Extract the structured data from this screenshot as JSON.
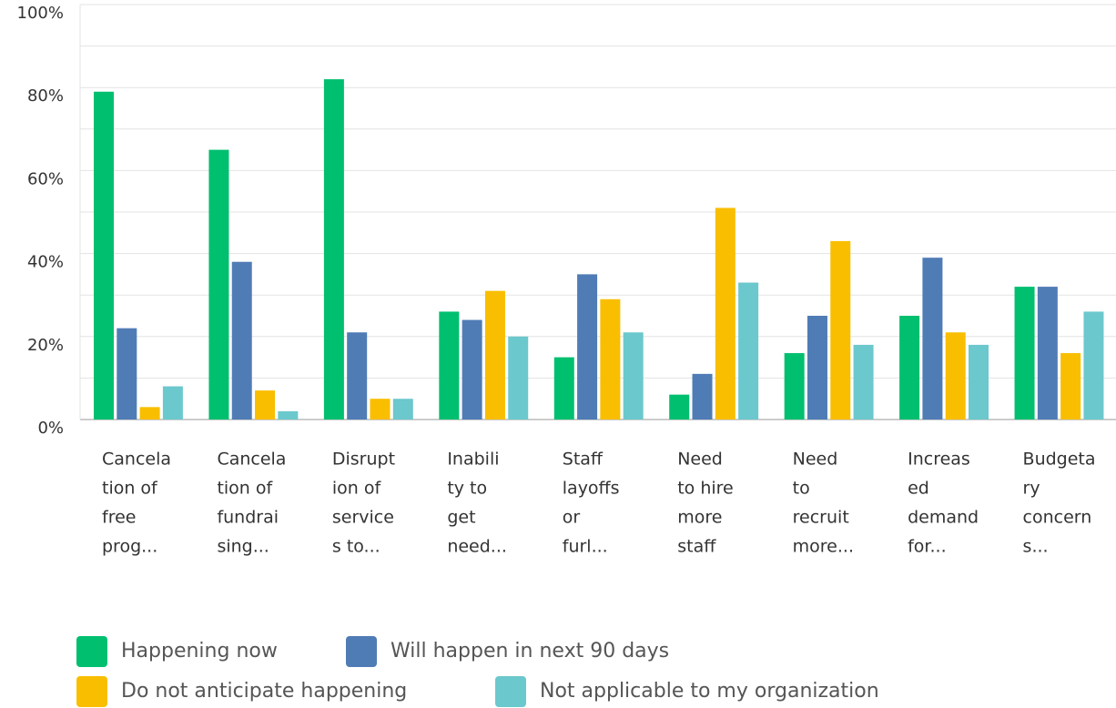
{
  "chart_data": {
    "type": "bar",
    "categories": [
      [
        "Cancela",
        "tion of",
        "free",
        "prog..."
      ],
      [
        "Cancela",
        "tion of",
        "fundrai",
        "sing..."
      ],
      [
        "Disrupt",
        "ion of",
        "service",
        "s to..."
      ],
      [
        "Inabili",
        "ty to",
        "get",
        "need..."
      ],
      [
        "Staff",
        "layoffs",
        "or",
        "furl..."
      ],
      [
        "Need",
        "to hire",
        "more",
        "staff"
      ],
      [
        "Need",
        "to",
        "recruit",
        "more..."
      ],
      [
        "Increas",
        "ed",
        "demand",
        "for..."
      ],
      [
        "Budgeta",
        "ry",
        "concern",
        "s..."
      ]
    ],
    "series": [
      {
        "name": "Happening now",
        "color": "#00bf6f",
        "values": [
          79,
          65,
          82,
          26,
          15,
          6,
          16,
          25,
          32
        ]
      },
      {
        "name": "Will happen in next 90 days",
        "color": "#507cb6",
        "values": [
          22,
          38,
          21,
          24,
          35,
          11,
          25,
          39,
          32
        ]
      },
      {
        "name": "Do not anticipate happening",
        "color": "#f9be00",
        "values": [
          3,
          7,
          5,
          31,
          29,
          51,
          43,
          21,
          16
        ]
      },
      {
        "name": "Not applicable to my organization",
        "color": "#6bc8cd",
        "values": [
          8,
          2,
          5,
          20,
          21,
          33,
          18,
          18,
          26
        ]
      }
    ],
    "ylim": [
      0,
      100
    ],
    "yticks": [
      {
        "value": 0,
        "label": "0%"
      },
      {
        "value": 20,
        "label": "20%"
      },
      {
        "value": 40,
        "label": "40%"
      },
      {
        "value": 60,
        "label": "60%"
      },
      {
        "value": 80,
        "label": "80%"
      },
      {
        "value": 100,
        "label": "100%"
      }
    ],
    "minor_yticks": [
      10,
      30,
      50,
      70,
      90
    ],
    "grid": true
  }
}
